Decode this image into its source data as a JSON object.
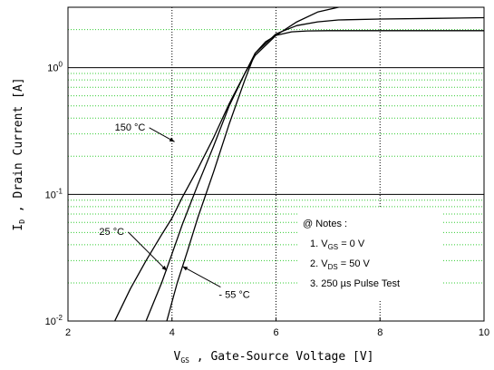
{
  "chart_data": {
    "type": "line",
    "title": "",
    "xlabel": {
      "main": "V",
      "sub": "GS",
      "rest": " , Gate-Source Voltage  [V]"
    },
    "ylabel": {
      "main": "I",
      "sub": "D",
      "rest": " , Drain Current   [A]"
    },
    "xlim": [
      2,
      10
    ],
    "ylim": [
      0.01,
      3
    ],
    "yscale": "log",
    "grid": true,
    "x_ticks": [
      "2",
      "4",
      "6",
      "8",
      "10"
    ],
    "y_ticks": [
      {
        "base": "10",
        "exp": "-2",
        "value": 0.01
      },
      {
        "base": "10",
        "exp": "-1",
        "value": 0.1
      },
      {
        "base": "10",
        "exp": "0",
        "value": 1
      }
    ],
    "series": [
      {
        "name": "150 °C",
        "x": [
          2.9,
          3.2,
          3.5,
          3.8,
          4.0,
          4.2,
          4.5,
          4.8,
          5.1,
          5.4,
          5.6,
          6.0,
          6.4,
          6.8,
          7.2,
          7.5,
          8.0,
          10.0
        ],
        "y": [
          0.01,
          0.018,
          0.03,
          0.048,
          0.065,
          0.095,
          0.16,
          0.28,
          0.52,
          0.9,
          1.25,
          1.8,
          2.3,
          2.75,
          3.0,
          3.2,
          3.4,
          3.4
        ]
      },
      {
        "name": "25 °C",
        "x": [
          3.5,
          3.8,
          4.0,
          4.2,
          4.5,
          4.8,
          5.1,
          5.4,
          5.6,
          6.0,
          6.4,
          6.8,
          7.2,
          8.0,
          9.0,
          10.0
        ],
        "y": [
          0.01,
          0.02,
          0.034,
          0.058,
          0.12,
          0.24,
          0.5,
          0.9,
          1.3,
          1.85,
          2.15,
          2.3,
          2.38,
          2.42,
          2.45,
          2.48
        ]
      },
      {
        "name": "- 55 °C",
        "x": [
          3.9,
          4.1,
          4.3,
          4.5,
          4.8,
          5.1,
          5.4,
          5.6,
          5.8,
          6.0,
          6.3,
          6.6,
          7.0,
          8.0,
          9.0,
          10.0
        ],
        "y": [
          0.01,
          0.02,
          0.036,
          0.066,
          0.15,
          0.36,
          0.8,
          1.3,
          1.6,
          1.8,
          1.92,
          1.95,
          1.96,
          1.96,
          1.96,
          1.96
        ]
      }
    ],
    "annotations": [
      {
        "text": "150 °C",
        "label_x": 2.9,
        "label_y": 0.32,
        "arrow_to_x": 4.05,
        "arrow_to_y": 0.26
      },
      {
        "text": "25 °C",
        "label_x": 2.6,
        "label_y": 0.048,
        "arrow_to_x": 3.9,
        "arrow_to_y": 0.025
      },
      {
        "text": "- 55 °C",
        "label_x": 4.9,
        "label_y": 0.0152,
        "arrow_to_x": 4.2,
        "arrow_to_y": 0.027
      }
    ],
    "notes": {
      "title": "@ Notes :",
      "items": [
        {
          "prefix": "1. V",
          "sub": "GS",
          "rest": " = 0 V"
        },
        {
          "prefix": "2. V",
          "sub": "DS",
          "rest": " = 50 V"
        },
        {
          "prefix": "3. 250 µs Pulse Test",
          "sub": "",
          "rest": ""
        }
      ]
    }
  }
}
